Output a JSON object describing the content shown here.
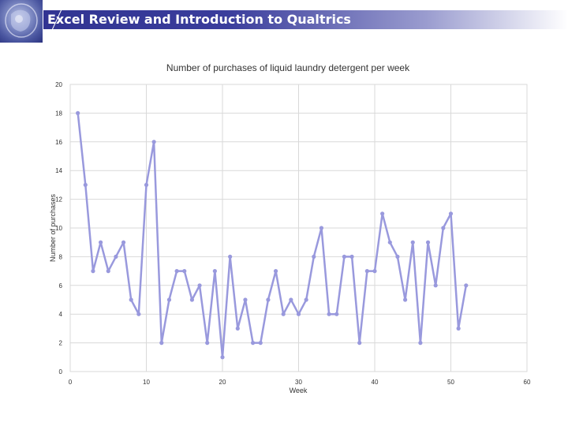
{
  "slide": {
    "title": "Excel Review and Introduction to Qualtrics",
    "logo_icon": "seal-emblem-icon"
  },
  "colors": {
    "header_band": "#2f3290",
    "series": "#9999dd",
    "grid": "#d9d9d9"
  },
  "chart_data": {
    "type": "line",
    "title": "Number of purchases of liquid laundry detergent per week",
    "xlabel": "Week",
    "ylabel": "Number of purchases",
    "xlim": [
      0,
      60
    ],
    "ylim": [
      0,
      20
    ],
    "xticks": [
      0,
      10,
      20,
      30,
      40,
      50,
      60
    ],
    "yticks": [
      0,
      2,
      4,
      6,
      8,
      10,
      12,
      14,
      16,
      18,
      20
    ],
    "grid": true,
    "legend": "none",
    "series": [
      {
        "x": [
          1,
          2,
          3,
          4,
          5,
          6,
          7,
          8,
          9,
          10,
          11,
          12,
          13,
          14,
          15,
          16,
          17,
          18,
          19,
          20,
          21,
          22,
          23,
          24,
          25,
          26,
          27,
          28,
          29,
          30,
          31,
          32,
          33,
          34,
          35,
          36,
          37,
          38,
          39,
          40,
          41,
          42,
          43,
          44,
          45,
          46,
          47,
          48,
          49,
          50,
          51,
          52
        ],
        "values": [
          18,
          13,
          7,
          9,
          7,
          8,
          9,
          5,
          4,
          13,
          16,
          2,
          5,
          7,
          7,
          5,
          6,
          2,
          7,
          1,
          8,
          3,
          5,
          2,
          2,
          5,
          7,
          4,
          5,
          4,
          5,
          8,
          10,
          4,
          4,
          8,
          8,
          2,
          7,
          7,
          11,
          9,
          8,
          5,
          9,
          2,
          9,
          6,
          10,
          11,
          3,
          6
        ]
      }
    ]
  }
}
